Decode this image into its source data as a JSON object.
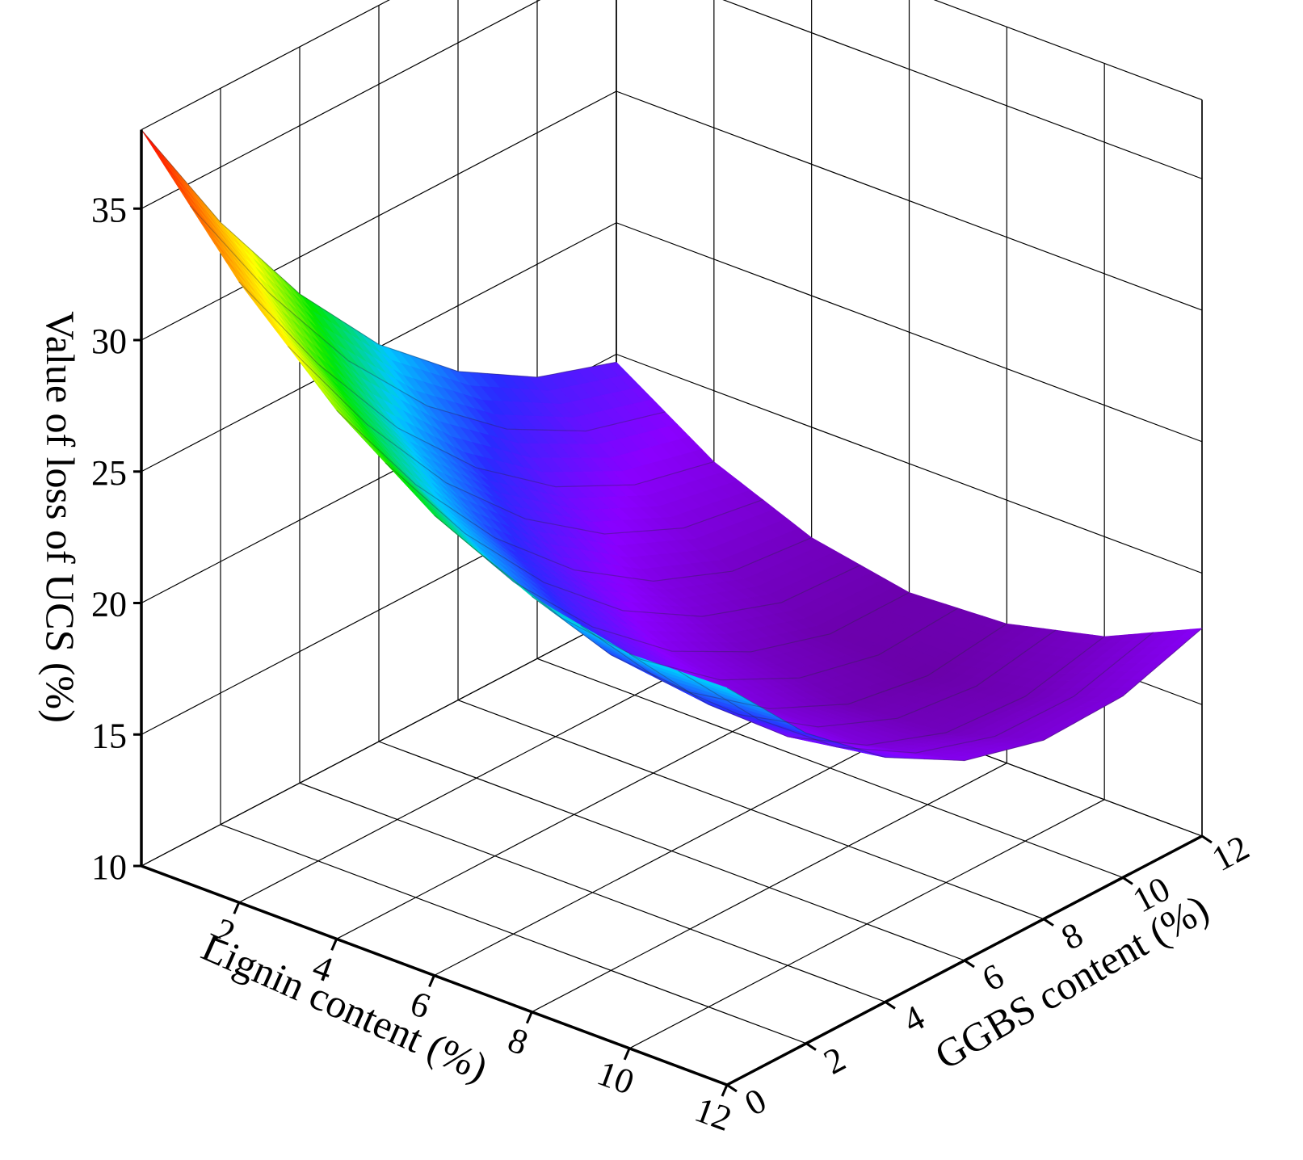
{
  "chart_data": {
    "type": "surface3d",
    "title": "",
    "xlabel": "Lignin content (%)",
    "ylabel": "GGBS content (%)",
    "zlabel": "Value of loss of UCS (%)",
    "x_ticks": [
      "2",
      "4",
      "6",
      "8",
      "10",
      "12"
    ],
    "y_ticks": [
      "0",
      "2",
      "4",
      "6",
      "8",
      "10",
      "12"
    ],
    "z_ticks": [
      "10",
      "15",
      "20",
      "25",
      "30",
      "35"
    ],
    "xlim": [
      0,
      12
    ],
    "ylim": [
      0,
      12
    ],
    "zlim": [
      10,
      38
    ],
    "grid": true,
    "colormap": [
      "#6a00a8",
      "#8a00ff",
      "#2a2aff",
      "#00c8ff",
      "#00e800",
      "#ffff00",
      "#ff8000",
      "#ff0000"
    ],
    "surface_samples": {
      "x": [
        0,
        2,
        4,
        6,
        8,
        10,
        12
      ],
      "y": [
        0,
        2,
        4,
        6,
        8,
        10,
        12
      ],
      "z": [
        [
          38.0,
          32.9,
          28.6,
          25.1,
          22.5,
          20.7,
          19.7
        ],
        [
          33.6,
          28.9,
          24.9,
          21.8,
          19.5,
          18.0,
          17.3
        ],
        [
          30.1,
          25.7,
          22.1,
          19.3,
          17.3,
          16.1,
          15.8
        ],
        [
          27.5,
          23.4,
          20.1,
          17.6,
          16.0,
          15.1,
          15.1
        ],
        [
          25.8,
          22.0,
          19.0,
          16.8,
          15.4,
          14.9,
          15.3
        ],
        [
          25.0,
          21.5,
          18.7,
          16.8,
          15.7,
          15.5,
          16.2
        ],
        [
          25.1,
          21.8,
          19.3,
          17.6,
          16.8,
          16.9,
          17.9
        ]
      ]
    }
  }
}
